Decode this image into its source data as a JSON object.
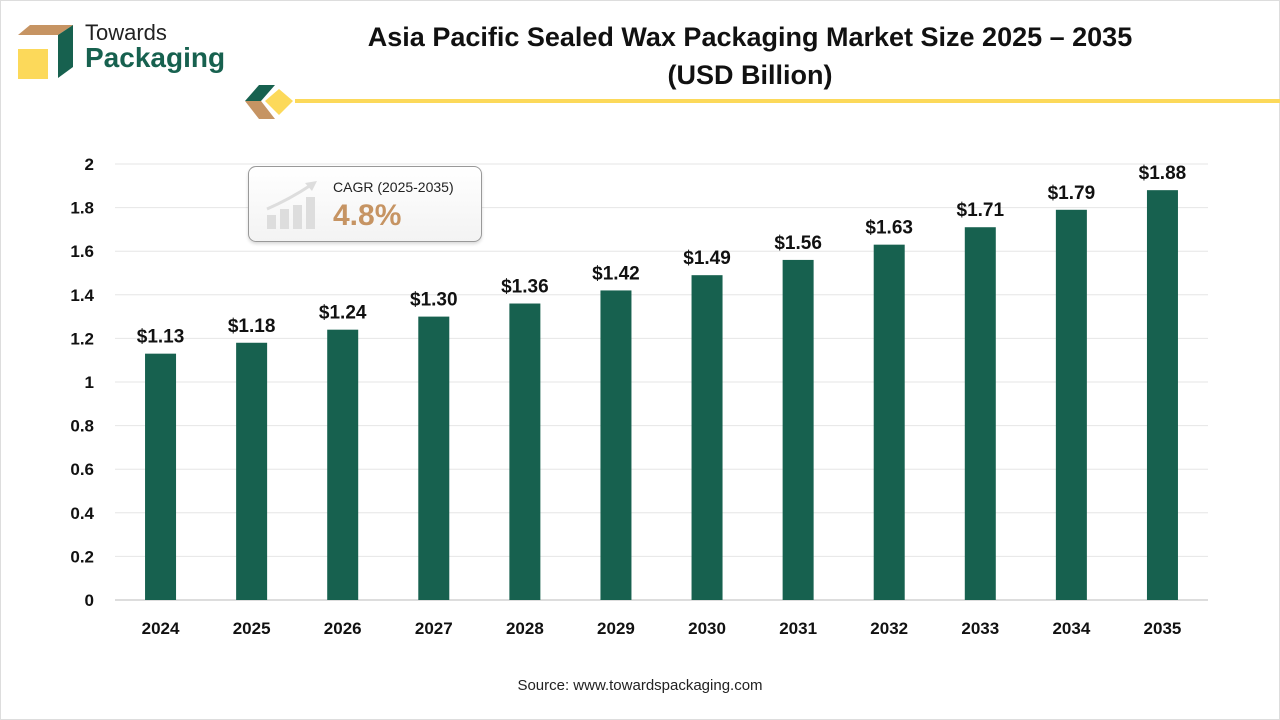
{
  "brand": {
    "line1": "Towards",
    "line2": "Packaging"
  },
  "title_line1": "Asia Pacific Sealed Wax Packaging Market Size 2025 – 2035",
  "title_line2": "(USD Billion)",
  "cagr": {
    "label": "CAGR (2025-2035)",
    "value": "4.8%",
    "icon": "growth-chart-icon"
  },
  "source": "Source: www.towardspackaging.com",
  "colors": {
    "bar": "#17614f",
    "accent": "#fcd95a",
    "cagr": "#c69463",
    "logo_tan": "#c69463"
  },
  "chart_data": {
    "type": "bar",
    "title": "Asia Pacific Sealed Wax Packaging Market Size 2025 – 2035 (USD Billion)",
    "categories": [
      "2024",
      "2025",
      "2026",
      "2027",
      "2028",
      "2029",
      "2030",
      "2031",
      "2032",
      "2033",
      "2034",
      "2035"
    ],
    "values": [
      1.13,
      1.18,
      1.24,
      1.3,
      1.36,
      1.42,
      1.49,
      1.56,
      1.63,
      1.71,
      1.79,
      1.88
    ],
    "data_labels": [
      "$1.13",
      "$1.18",
      "$1.24",
      "$1.30",
      "$1.36",
      "$1.42",
      "$1.49",
      "$1.56",
      "$1.63",
      "$1.71",
      "$1.79",
      "$1.88"
    ],
    "yticks": [
      "0",
      "0.2",
      "0.4",
      "0.6",
      "0.8",
      "1",
      "1.2",
      "1.4",
      "1.6",
      "1.8",
      "2"
    ],
    "ylim": [
      0,
      2
    ],
    "grid": true,
    "xlabel": "",
    "ylabel": ""
  }
}
